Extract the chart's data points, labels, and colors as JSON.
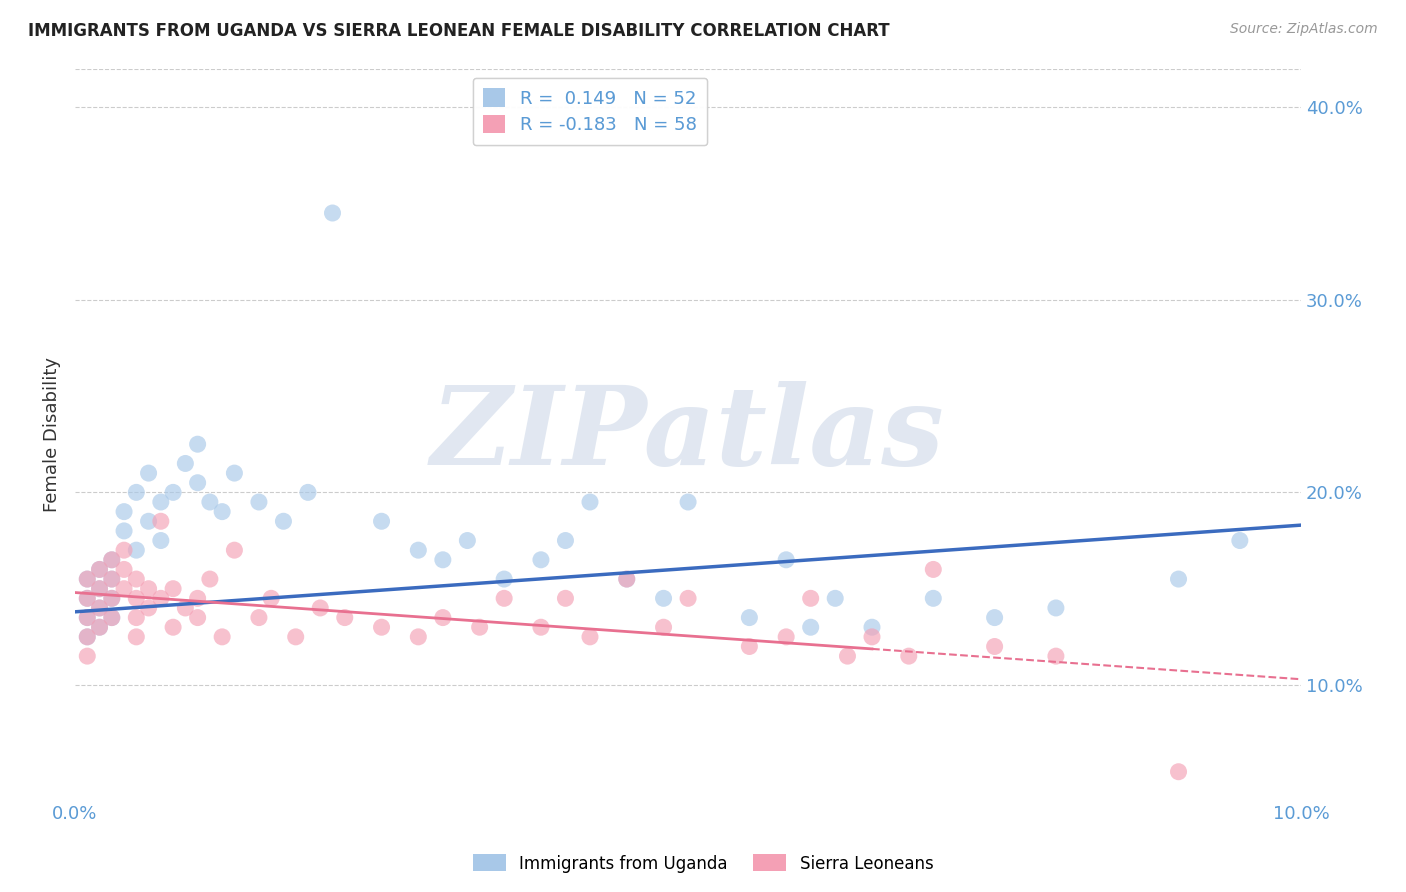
{
  "title": "IMMIGRANTS FROM UGANDA VS SIERRA LEONEAN FEMALE DISABILITY CORRELATION CHART",
  "source": "Source: ZipAtlas.com",
  "ylabel": "Female Disability",
  "legend_label1": "Immigrants from Uganda",
  "legend_label2": "Sierra Leoneans",
  "R1": 0.149,
  "N1": 52,
  "R2": -0.183,
  "N2": 58,
  "color1": "#a8c8e8",
  "color2": "#f4a0b5",
  "line_color1": "#3b6bbf",
  "line_color2": "#e87090",
  "xlim": [
    0.0,
    0.1
  ],
  "ylim": [
    0.04,
    0.42
  ],
  "x_ticks": [
    0.0,
    0.02,
    0.04,
    0.06,
    0.08,
    0.1
  ],
  "y_ticks": [
    0.1,
    0.2,
    0.3,
    0.4
  ],
  "y_tick_labels": [
    "10.0%",
    "20.0%",
    "30.0%",
    "40.0%"
  ],
  "scatter1_x": [
    0.001,
    0.001,
    0.001,
    0.001,
    0.002,
    0.002,
    0.002,
    0.002,
    0.003,
    0.003,
    0.003,
    0.003,
    0.004,
    0.004,
    0.005,
    0.005,
    0.006,
    0.006,
    0.007,
    0.007,
    0.008,
    0.009,
    0.01,
    0.01,
    0.011,
    0.012,
    0.013,
    0.015,
    0.017,
    0.019,
    0.021,
    0.025,
    0.028,
    0.03,
    0.032,
    0.035,
    0.038,
    0.04,
    0.042,
    0.045,
    0.048,
    0.05,
    0.055,
    0.058,
    0.06,
    0.062,
    0.065,
    0.07,
    0.075,
    0.08,
    0.09,
    0.095
  ],
  "scatter1_y": [
    0.155,
    0.145,
    0.135,
    0.125,
    0.16,
    0.15,
    0.14,
    0.13,
    0.165,
    0.155,
    0.145,
    0.135,
    0.18,
    0.19,
    0.17,
    0.2,
    0.21,
    0.185,
    0.195,
    0.175,
    0.2,
    0.215,
    0.225,
    0.205,
    0.195,
    0.19,
    0.21,
    0.195,
    0.185,
    0.2,
    0.345,
    0.185,
    0.17,
    0.165,
    0.175,
    0.155,
    0.165,
    0.175,
    0.195,
    0.155,
    0.145,
    0.195,
    0.135,
    0.165,
    0.13,
    0.145,
    0.13,
    0.145,
    0.135,
    0.14,
    0.155,
    0.175
  ],
  "scatter2_x": [
    0.001,
    0.001,
    0.001,
    0.001,
    0.001,
    0.002,
    0.002,
    0.002,
    0.002,
    0.003,
    0.003,
    0.003,
    0.003,
    0.004,
    0.004,
    0.004,
    0.005,
    0.005,
    0.005,
    0.005,
    0.006,
    0.006,
    0.007,
    0.007,
    0.008,
    0.008,
    0.009,
    0.01,
    0.01,
    0.011,
    0.012,
    0.013,
    0.015,
    0.016,
    0.018,
    0.02,
    0.022,
    0.025,
    0.028,
    0.03,
    0.033,
    0.035,
    0.038,
    0.04,
    0.042,
    0.045,
    0.048,
    0.05,
    0.055,
    0.058,
    0.06,
    0.063,
    0.065,
    0.068,
    0.07,
    0.075,
    0.08,
    0.09
  ],
  "scatter2_y": [
    0.155,
    0.145,
    0.135,
    0.125,
    0.115,
    0.16,
    0.15,
    0.14,
    0.13,
    0.165,
    0.155,
    0.145,
    0.135,
    0.17,
    0.16,
    0.15,
    0.145,
    0.135,
    0.155,
    0.125,
    0.15,
    0.14,
    0.185,
    0.145,
    0.13,
    0.15,
    0.14,
    0.145,
    0.135,
    0.155,
    0.125,
    0.17,
    0.135,
    0.145,
    0.125,
    0.14,
    0.135,
    0.13,
    0.125,
    0.135,
    0.13,
    0.145,
    0.13,
    0.145,
    0.125,
    0.155,
    0.13,
    0.145,
    0.12,
    0.125,
    0.145,
    0.115,
    0.125,
    0.115,
    0.16,
    0.12,
    0.115,
    0.055
  ],
  "line1_x0": 0.0,
  "line1_x1": 0.1,
  "line1_y0": 0.138,
  "line1_y1": 0.183,
  "line2_x0": 0.0,
  "line2_x1": 0.1,
  "line2_y0": 0.148,
  "line2_y1": 0.103,
  "line2_solid_end": 0.065,
  "background_color": "#ffffff",
  "grid_color": "#cccccc",
  "watermark": "ZIPatlas",
  "watermark_color": "#cdd8e8"
}
